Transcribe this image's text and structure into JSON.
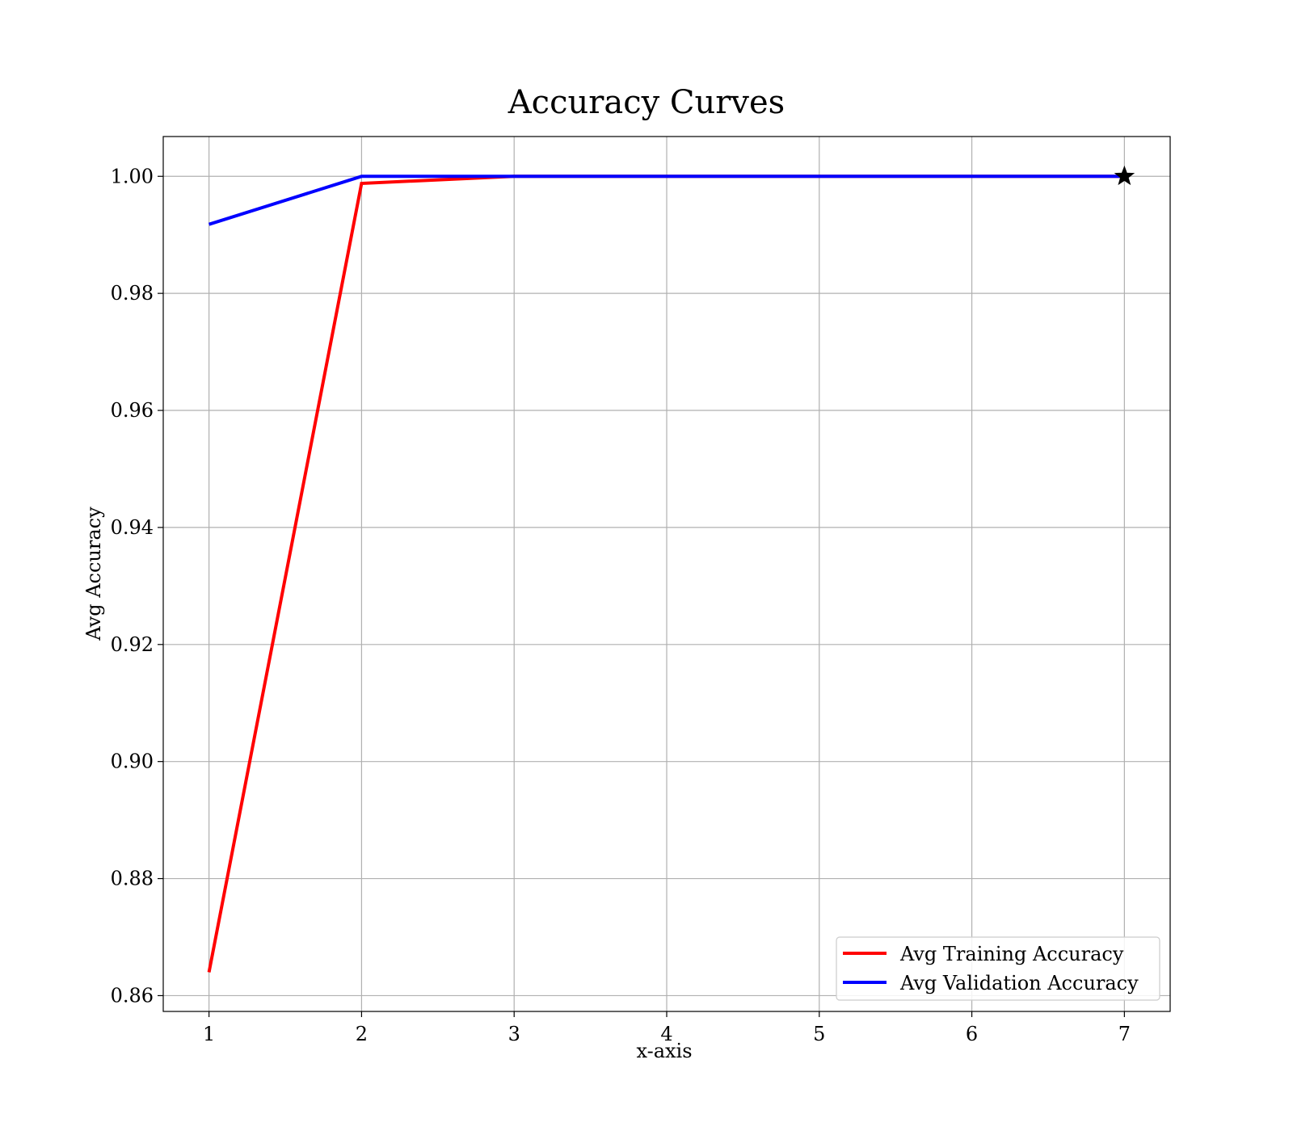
{
  "chart_data": {
    "type": "line",
    "title": "Accuracy Curves",
    "xlabel": "x-axis",
    "ylabel": "Avg Accuracy",
    "x": [
      1,
      2,
      3,
      4,
      5,
      6,
      7
    ],
    "xlim": [
      0.7,
      7.3
    ],
    "ylim": [
      0.8573,
      1.0068
    ],
    "xticks": [
      1,
      2,
      3,
      4,
      5,
      6,
      7
    ],
    "xtick_labels": [
      "1",
      "2",
      "3",
      "4",
      "5",
      "6",
      "7"
    ],
    "yticks": [
      0.86,
      0.88,
      0.9,
      0.92,
      0.94,
      0.96,
      0.98,
      1.0
    ],
    "ytick_labels": [
      "0.86",
      "0.88",
      "0.90",
      "0.92",
      "0.94",
      "0.96",
      "0.98",
      "1.00"
    ],
    "grid": true,
    "legend_position": "lower-right",
    "series": [
      {
        "name": "Avg Training Accuracy",
        "color": "#ff0000",
        "values": [
          0.864,
          0.9988,
          1.0,
          1.0,
          1.0,
          1.0,
          1.0
        ]
      },
      {
        "name": "Avg Validation Accuracy",
        "color": "#0000ff",
        "values": [
          0.9918,
          1.0,
          1.0,
          1.0,
          1.0,
          1.0,
          1.0
        ]
      }
    ],
    "best_marker": {
      "x": 7,
      "y": 1.0,
      "shape": "star-icon"
    }
  }
}
